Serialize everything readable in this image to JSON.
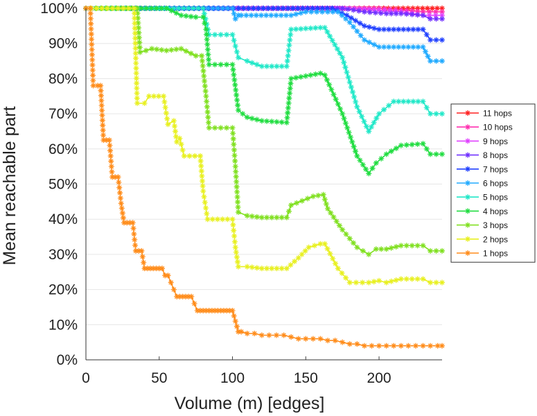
{
  "chart_data": {
    "type": "line",
    "xlabel": "Volume (m) [edges]",
    "ylabel": "Mean reachable part",
    "xlim": [
      0,
      243
    ],
    "ylim": [
      0,
      100
    ],
    "x_ticks": [
      "0",
      "50",
      "100",
      "150",
      "200"
    ],
    "y_ticks": [
      "0%",
      "10%",
      "20%",
      "30%",
      "40%",
      "50%",
      "60%",
      "70%",
      "80%",
      "90%",
      "100%"
    ],
    "grid": "horizontal",
    "legend_position": "right",
    "series": [
      {
        "name": "11 hops",
        "color": "#ff2020",
        "x": [
          0,
          243
        ],
        "y": [
          100,
          100
        ]
      },
      {
        "name": "10 hops",
        "color": "#ff30b0",
        "x": [
          0,
          200,
          215,
          230,
          243
        ],
        "y": [
          100,
          100,
          99.5,
          99,
          99
        ]
      },
      {
        "name": "9 hops",
        "color": "#e040ff",
        "x": [
          0,
          180,
          200,
          215,
          230,
          243
        ],
        "y": [
          100,
          100,
          99.5,
          99,
          98,
          98
        ]
      },
      {
        "name": "8 hops",
        "color": "#7030ff",
        "x": [
          0,
          175,
          190,
          205,
          215,
          230,
          235,
          243
        ],
        "y": [
          100,
          100,
          99,
          98.5,
          98.5,
          98,
          97,
          97
        ]
      },
      {
        "name": "7 hops",
        "color": "#2040ff",
        "x": [
          0,
          168,
          178,
          190,
          200,
          210,
          230,
          235,
          243
        ],
        "y": [
          100,
          100,
          98,
          95,
          94,
          94,
          94,
          91,
          91
        ]
      },
      {
        "name": "6 hops",
        "color": "#20aaff",
        "x": [
          0,
          100,
          102,
          104,
          106,
          140,
          150,
          165,
          172,
          180,
          190,
          200,
          210,
          230,
          235,
          243
        ],
        "y": [
          100,
          100,
          97,
          98,
          98,
          98,
          99,
          99,
          99,
          96,
          91,
          89,
          89,
          89,
          85,
          85
        ]
      },
      {
        "name": "5 hops",
        "color": "#20e8c8",
        "x": [
          0,
          80,
          84,
          100,
          104,
          110,
          120,
          137,
          140,
          160,
          163,
          175,
          185,
          193,
          200,
          210,
          230,
          235,
          243
        ],
        "y": [
          100,
          100,
          92.5,
          92.5,
          86,
          85,
          83.5,
          83.5,
          94,
          94.5,
          94.5,
          86,
          72,
          65,
          70,
          73.5,
          73.5,
          70,
          70
        ]
      },
      {
        "name": "4 hops",
        "color": "#20dd40",
        "x": [
          0,
          55,
          65,
          75,
          80,
          82,
          84,
          100,
          104,
          110,
          120,
          137,
          140,
          160,
          163,
          175,
          185,
          193,
          198,
          205,
          215,
          230,
          235,
          243
        ],
        "y": [
          100,
          100,
          98,
          97.5,
          97.5,
          94,
          84,
          84,
          71,
          69,
          68,
          67.5,
          80,
          81.5,
          81,
          70,
          58,
          53,
          56,
          58.5,
          61,
          61.5,
          58.5,
          58.5
        ]
      },
      {
        "name": "3 hops",
        "color": "#80e020",
        "x": [
          0,
          35,
          37,
          45,
          55,
          65,
          75,
          79,
          82,
          84,
          100,
          102,
          104,
          110,
          120,
          137,
          140,
          155,
          162,
          165,
          175,
          185,
          193,
          198,
          205,
          215,
          230,
          235,
          243
        ],
        "y": [
          100,
          100,
          87.5,
          88.5,
          88,
          88.5,
          86.5,
          86.5,
          75,
          66,
          66,
          55,
          42,
          41,
          40.5,
          40.5,
          44,
          46.5,
          47,
          43,
          37,
          32,
          30,
          31.5,
          31.5,
          32.5,
          32.5,
          31,
          31
        ]
      },
      {
        "name": "2 hops",
        "color": "#e8f020",
        "x": [
          0,
          33,
          35,
          40,
          43,
          53,
          56,
          60,
          62,
          64,
          67,
          78,
          80,
          83,
          100,
          102,
          104,
          110,
          120,
          137,
          145,
          152,
          160,
          163,
          172,
          180,
          193,
          200,
          205,
          215,
          230,
          235,
          243
        ],
        "y": [
          100,
          100,
          73,
          73,
          75,
          75,
          67,
          68,
          62,
          63,
          58,
          58,
          48,
          40,
          40,
          32,
          26.5,
          26.5,
          26,
          26,
          29,
          32,
          33,
          33,
          26,
          22,
          22,
          22.5,
          22,
          23,
          23,
          22,
          22
        ]
      },
      {
        "name": "1 hops",
        "color": "#ff8c1a",
        "x": [
          0,
          3,
          5,
          8,
          10,
          12,
          14,
          16,
          18,
          20,
          22,
          24,
          26,
          28,
          30,
          32,
          34,
          36,
          38,
          40,
          42,
          44,
          46,
          48,
          50,
          52,
          54,
          56,
          58,
          60,
          62,
          64,
          66,
          68,
          70,
          72,
          74,
          76,
          78,
          80,
          82,
          84,
          86,
          88,
          90,
          92,
          94,
          96,
          98,
          100,
          102,
          104,
          106,
          110,
          115,
          120,
          125,
          130,
          135,
          140,
          145,
          150,
          155,
          160,
          165,
          170,
          175,
          180,
          185,
          190,
          195,
          200,
          205,
          210,
          215,
          220,
          225,
          230,
          235,
          240,
          243
        ],
        "y": [
          100,
          100,
          78,
          78,
          78,
          62.5,
          62.5,
          62.5,
          52,
          52,
          52,
          44.5,
          39,
          39,
          39,
          39,
          31,
          31,
          31,
          26,
          26,
          26,
          26,
          26,
          26,
          26,
          24,
          24,
          22,
          20,
          18,
          18,
          18,
          18,
          18,
          18,
          16,
          14,
          14,
          14,
          14,
          14,
          14,
          14,
          14,
          14,
          14,
          14,
          14,
          14,
          11,
          8,
          8,
          7.5,
          7.5,
          7,
          7,
          7,
          7,
          6.5,
          6,
          6,
          6,
          6,
          5.5,
          5.5,
          5,
          4.5,
          4.5,
          4,
          4,
          4,
          4,
          4,
          4,
          4,
          4,
          4,
          4,
          4,
          4
        ]
      }
    ]
  }
}
